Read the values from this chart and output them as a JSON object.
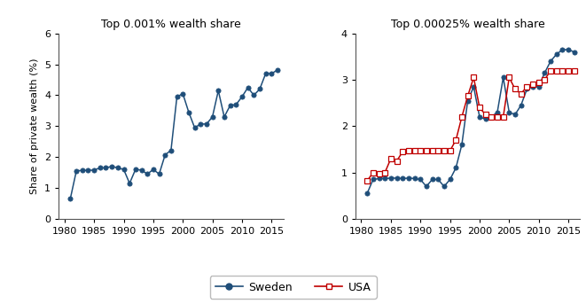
{
  "left_title": "Top 0.001% wealth share",
  "right_title": "Top 0.00025% wealth share",
  "ylabel": "Share of private wealth (%)",
  "sweden_color": "#1f4e79",
  "usa_color": "#c00000",
  "left_sweden_years": [
    1981,
    1982,
    1983,
    1984,
    1985,
    1986,
    1987,
    1988,
    1989,
    1990,
    1991,
    1992,
    1993,
    1994,
    1995,
    1996,
    1997,
    1998,
    1999,
    2000,
    2001,
    2002,
    2003,
    2004,
    2005,
    2006,
    2007,
    2008,
    2009,
    2010,
    2011,
    2012,
    2013,
    2014,
    2015,
    2016
  ],
  "left_sweden_values": [
    0.67,
    1.55,
    1.57,
    1.57,
    1.58,
    1.65,
    1.65,
    1.7,
    1.65,
    1.6,
    1.15,
    1.6,
    1.58,
    1.45,
    1.6,
    1.45,
    2.07,
    2.22,
    3.95,
    4.05,
    3.45,
    2.95,
    3.07,
    3.07,
    3.3,
    4.15,
    3.3,
    3.67,
    3.7,
    3.95,
    4.25,
    4.0,
    4.2,
    4.7,
    4.7,
    4.82
  ],
  "right_sweden_years": [
    1981,
    1982,
    1983,
    1984,
    1985,
    1986,
    1987,
    1988,
    1989,
    1990,
    1991,
    1992,
    1993,
    1994,
    1995,
    1996,
    1997,
    1998,
    1999,
    2000,
    2001,
    2002,
    2003,
    2004,
    2005,
    2006,
    2007,
    2008,
    2009,
    2010,
    2011,
    2012,
    2013,
    2014,
    2015,
    2016
  ],
  "right_sweden_values": [
    0.55,
    0.85,
    0.87,
    0.87,
    0.88,
    0.88,
    0.87,
    0.88,
    0.87,
    0.85,
    0.7,
    0.85,
    0.85,
    0.7,
    0.85,
    1.1,
    1.6,
    2.55,
    2.85,
    2.2,
    2.15,
    2.2,
    2.3,
    3.05,
    2.3,
    2.25,
    2.45,
    2.8,
    2.85,
    2.85,
    3.15,
    3.4,
    3.55,
    3.65,
    3.65,
    3.6
  ],
  "right_usa_years": [
    1981,
    1982,
    1983,
    1984,
    1985,
    1986,
    1987,
    1988,
    1989,
    1990,
    1991,
    1992,
    1993,
    1994,
    1995,
    1996,
    1997,
    1998,
    1999,
    2000,
    2001,
    2002,
    2003,
    2004,
    2005,
    2006,
    2007,
    2008,
    2009,
    2010,
    2011,
    2012,
    2013,
    2014,
    2015,
    2016
  ],
  "right_usa_values": [
    0.82,
    1.0,
    0.97,
    1.0,
    1.3,
    1.25,
    1.45,
    1.47,
    1.48,
    1.48,
    1.47,
    1.47,
    1.47,
    1.47,
    1.47,
    1.7,
    2.2,
    2.65,
    3.05,
    2.4,
    2.25,
    2.2,
    2.2,
    2.2,
    3.05,
    2.8,
    2.7,
    2.85,
    2.9,
    2.95,
    3.0,
    3.2,
    3.2,
    3.2,
    3.2,
    3.2
  ],
  "left_ylim": [
    0,
    6
  ],
  "left_yticks": [
    0,
    1,
    2,
    3,
    4,
    5,
    6
  ],
  "right_ylim": [
    0,
    4
  ],
  "right_yticks": [
    0,
    1,
    2,
    3,
    4
  ],
  "xlim": [
    1979,
    2017
  ],
  "xticks": [
    1980,
    1985,
    1990,
    1995,
    2000,
    2005,
    2010,
    2015
  ],
  "legend_sweden": "Sweden",
  "legend_usa": "USA"
}
